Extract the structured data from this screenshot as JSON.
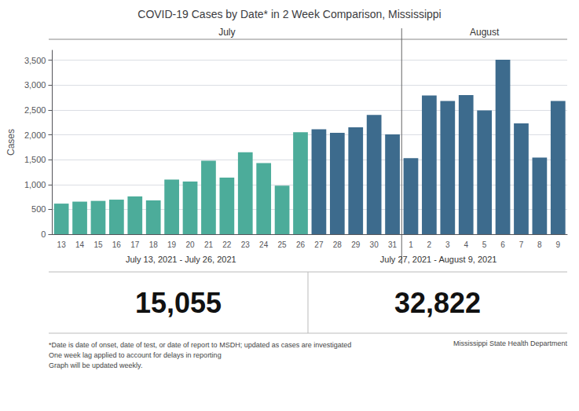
{
  "chart_data": {
    "type": "bar",
    "title": "COVID-19 Cases by Date* in 2 Week Comparison, Mississippi",
    "ylabel": "Cases",
    "categories": [
      "13",
      "14",
      "15",
      "16",
      "17",
      "18",
      "19",
      "20",
      "21",
      "22",
      "23",
      "24",
      "25",
      "26",
      "27",
      "28",
      "29",
      "30",
      "31",
      "1",
      "2",
      "3",
      "4",
      "5",
      "6",
      "7",
      "8",
      "9"
    ],
    "values": [
      615,
      655,
      670,
      695,
      760,
      680,
      1100,
      1060,
      1480,
      1140,
      1650,
      1430,
      975,
      2050,
      2110,
      2040,
      2150,
      2400,
      2010,
      1530,
      2790,
      2680,
      2800,
      2490,
      3510,
      2230,
      1540,
      2680
    ],
    "colors": [
      "#4cac9a",
      "#4cac9a",
      "#4cac9a",
      "#4cac9a",
      "#4cac9a",
      "#4cac9a",
      "#4cac9a",
      "#4cac9a",
      "#4cac9a",
      "#4cac9a",
      "#4cac9a",
      "#4cac9a",
      "#4cac9a",
      "#4cac9a",
      "#3d6b8d",
      "#3d6b8d",
      "#3d6b8d",
      "#3d6b8d",
      "#3d6b8d",
      "#3d6b8d",
      "#3d6b8d",
      "#3d6b8d",
      "#3d6b8d",
      "#3d6b8d",
      "#3d6b8d",
      "#3d6b8d",
      "#3d6b8d",
      "#3d6b8d"
    ],
    "ylim": [
      0,
      3700
    ],
    "yticks": [
      0,
      500,
      1000,
      1500,
      2000,
      2500,
      3000,
      3500
    ],
    "grid": true,
    "annotations": [
      "July",
      "August",
      "July 13, 2021 - July 26, 2021",
      "July 27, 2021 - August 9, 2021",
      "15,055",
      "32,822",
      "*Date is date of onset, date of test, or date of report to MSDH; updated as cases are investigated",
      "One week lag applied to account for delays in reporting",
      "Graph will be updated weekly.",
      "Mississippi State Health Department"
    ]
  }
}
